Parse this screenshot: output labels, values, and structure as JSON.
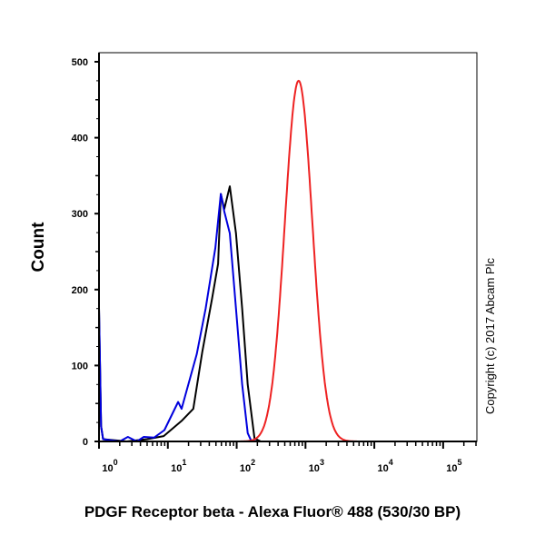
{
  "chart_data": {
    "type": "line",
    "title": "",
    "xlabel": "PDGF Receptor beta - Alexa Fluor® 488 (530/30 BP)",
    "ylabel": "Count",
    "x_scale": "log10",
    "xlim_log10": [
      0,
      5.49
    ],
    "ylim": [
      0,
      500
    ],
    "yticks": [
      "0",
      "100",
      "200",
      "300",
      "400",
      "500"
    ],
    "xticks": [
      {
        "base": "10",
        "exp": "0"
      },
      {
        "base": "10",
        "exp": "1"
      },
      {
        "base": "10",
        "exp": "2"
      },
      {
        "base": "10",
        "exp": "3"
      },
      {
        "base": "10",
        "exp": "4"
      },
      {
        "base": "10",
        "exp": "5"
      }
    ],
    "annotation": "Copyright (c) 2017 Abcam Plc",
    "series": [
      {
        "name": "black",
        "color": "#000000",
        "points_log10x": [
          [
            0,
            175
          ],
          [
            0.03,
            20
          ],
          [
            0.06,
            3
          ],
          [
            0.4,
            0
          ],
          [
            0.7,
            3
          ],
          [
            0.94,
            7
          ],
          [
            1.2,
            27
          ],
          [
            1.37,
            43
          ],
          [
            1.5,
            118
          ],
          [
            1.64,
            187
          ],
          [
            1.73,
            234
          ],
          [
            1.77,
            326
          ],
          [
            1.82,
            306
          ],
          [
            1.9,
            336
          ],
          [
            1.99,
            274
          ],
          [
            2.08,
            175
          ],
          [
            2.16,
            75
          ],
          [
            2.26,
            4
          ],
          [
            2.35,
            0
          ],
          [
            5.49,
            0
          ]
        ]
      },
      {
        "name": "blue",
        "color": "#0000dd",
        "points_log10x": [
          [
            0,
            175
          ],
          [
            0.03,
            20
          ],
          [
            0.06,
            3
          ],
          [
            0.3,
            0
          ],
          [
            0.42,
            6
          ],
          [
            0.55,
            0
          ],
          [
            0.65,
            6
          ],
          [
            0.8,
            5
          ],
          [
            0.95,
            15
          ],
          [
            1.15,
            52
          ],
          [
            1.2,
            43
          ],
          [
            1.42,
            115
          ],
          [
            1.55,
            175
          ],
          [
            1.69,
            255
          ],
          [
            1.77,
            326
          ],
          [
            1.82,
            303
          ],
          [
            1.9,
            274
          ],
          [
            1.99,
            175
          ],
          [
            2.08,
            75
          ],
          [
            2.16,
            11
          ],
          [
            2.21,
            1
          ],
          [
            2.3,
            0
          ]
        ]
      },
      {
        "name": "red",
        "color": "#ee2222",
        "peak_log10x": 2.9,
        "peak_count": 475,
        "sigma_log10": 0.2
      }
    ]
  }
}
